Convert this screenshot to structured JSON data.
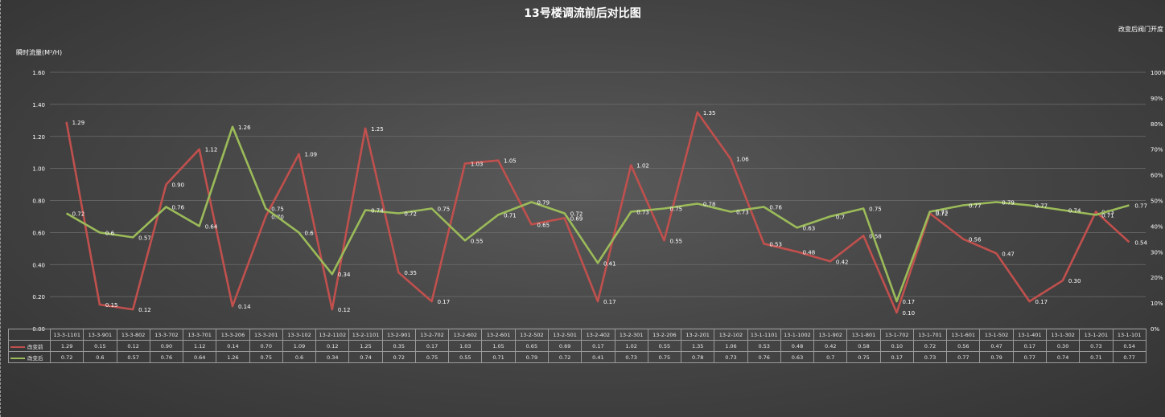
{
  "page": {
    "title": "13号楼调流前后对比图",
    "y_axis_title": "瞬时流量(M³/H)",
    "y2_axis_title": "改变后阀门开度"
  },
  "chart_data": {
    "type": "line",
    "title": "13号楼调流前后对比图",
    "ylabel": "瞬时流量(M³/H)",
    "y2label": "改变后阀门开度",
    "ylim": [
      0,
      1.6
    ],
    "y_ticks": [
      "0.00",
      "0.20",
      "0.40",
      "0.60",
      "0.80",
      "1.00",
      "1.20",
      "1.40",
      "1.60"
    ],
    "y2lim": [
      0,
      100
    ],
    "y2_ticks": [
      "0%",
      "10%",
      "20%",
      "30%",
      "40%",
      "50%",
      "60%",
      "70%",
      "80%",
      "90%",
      "100%"
    ],
    "grid": true,
    "legend": "data-table",
    "categories": [
      "13-3-1101",
      "13-3-901",
      "13-3-802",
      "13-3-702",
      "13-3-701",
      "13-3-206",
      "13-3-201",
      "13-3-102",
      "13-2-1102",
      "13-2-1101",
      "13-2-901",
      "13-2-702",
      "13-2-602",
      "13-2-601",
      "13-2-502",
      "13-2-501",
      "13-2-402",
      "13-2-301",
      "13-2-206",
      "13-2-201",
      "13-2-102",
      "13-1-1101",
      "13-1-1002",
      "13-1-902",
      "13-1-801",
      "13-1-702",
      "13-1-701",
      "13-1-601",
      "13-1-502",
      "13-1-401",
      "13-1-302",
      "13-1-201",
      "13-1-101"
    ],
    "series": [
      {
        "name": "改变前",
        "color": "#c0504d",
        "values": [
          1.29,
          0.15,
          0.12,
          0.9,
          1.12,
          0.14,
          0.7,
          1.09,
          0.12,
          1.25,
          0.35,
          0.17,
          1.03,
          1.05,
          0.65,
          0.69,
          0.17,
          1.02,
          0.55,
          1.35,
          1.06,
          0.53,
          0.48,
          0.42,
          0.58,
          0.1,
          0.72,
          0.56,
          0.47,
          0.17,
          0.3,
          0.73,
          0.54
        ],
        "labels": [
          "1.29",
          "0.15",
          "0.12",
          "0.90",
          "1.12",
          "0.14",
          "0.70",
          "1.09",
          "0.12",
          "1.25",
          "0.35",
          "0.17",
          "1.03",
          "1.05",
          "0.65",
          "0.69",
          "0.17",
          "1.02",
          "0.55",
          "1.35",
          "1.06",
          "0.53",
          "0.48",
          "0.42",
          "0.58",
          "0.10",
          "0.72",
          "0.56",
          "0.47",
          "0.17",
          "0.30",
          "0.73",
          "0.54"
        ]
      },
      {
        "name": "改变后",
        "color": "#9bbb59",
        "values": [
          0.72,
          0.6,
          0.57,
          0.76,
          0.64,
          1.26,
          0.75,
          0.6,
          0.34,
          0.74,
          0.72,
          0.75,
          0.55,
          0.71,
          0.79,
          0.72,
          0.41,
          0.73,
          0.75,
          0.78,
          0.73,
          0.76,
          0.63,
          0.7,
          0.75,
          0.17,
          0.73,
          0.77,
          0.79,
          0.77,
          0.74,
          0.71,
          0.77
        ],
        "labels": [
          "0.72",
          "0.6",
          "0.57",
          "0.76",
          "0.64",
          "1.26",
          "0.75",
          "0.6",
          "0.34",
          "0.74",
          "0.72",
          "0.75",
          "0.55",
          "0.71",
          "0.79",
          "0.72",
          "0.41",
          "0.73",
          "0.75",
          "0.78",
          "0.73",
          "0.76",
          "0.63",
          "0.7",
          "0.75",
          "0.17",
          "0.73",
          "0.77",
          "0.79",
          "0.77",
          "0.74",
          "0.71",
          "0.77"
        ]
      }
    ]
  }
}
